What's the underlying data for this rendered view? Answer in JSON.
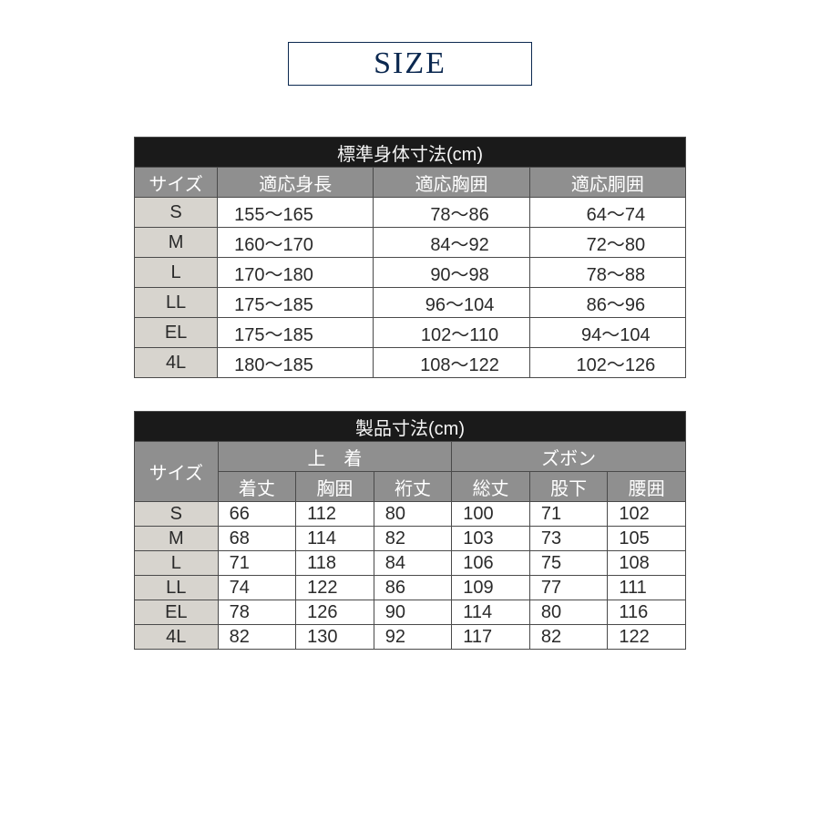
{
  "badge": {
    "label": "SIZE"
  },
  "table1": {
    "title": "標準身体寸法(cm)",
    "headers": [
      "サイズ",
      "適応身長",
      "適応胸囲",
      "適応胴囲"
    ],
    "rows": [
      [
        "S",
        "155～165",
        "78～86",
        "64～74"
      ],
      [
        "M",
        "160～170",
        "84～92",
        "72～80"
      ],
      [
        "L",
        "170～180",
        "90～98",
        "78～88"
      ],
      [
        "LL",
        "175～185",
        "96～104",
        "86～96"
      ],
      [
        "EL",
        "175～185",
        "102～110",
        "94～104"
      ],
      [
        "4L",
        "180～185",
        "108～122",
        "102～126"
      ]
    ]
  },
  "table2": {
    "title": "製品寸法(cm)",
    "size_label": "サイズ",
    "groups": [
      "上　着",
      "ズボン"
    ],
    "subheaders": [
      "着丈",
      "胸囲",
      "裄丈",
      "総丈",
      "股下",
      "腰囲"
    ],
    "rows": [
      [
        "S",
        "66",
        "112",
        "80",
        "100",
        "71",
        "102"
      ],
      [
        "M",
        "68",
        "114",
        "82",
        "103",
        "73",
        "105"
      ],
      [
        "L",
        "71",
        "118",
        "84",
        "106",
        "75",
        "108"
      ],
      [
        "LL",
        "74",
        "122",
        "86",
        "109",
        "77",
        "111"
      ],
      [
        "EL",
        "78",
        "126",
        "90",
        "114",
        "80",
        "116"
      ],
      [
        "4L",
        "82",
        "130",
        "92",
        "117",
        "82",
        "122"
      ]
    ]
  }
}
